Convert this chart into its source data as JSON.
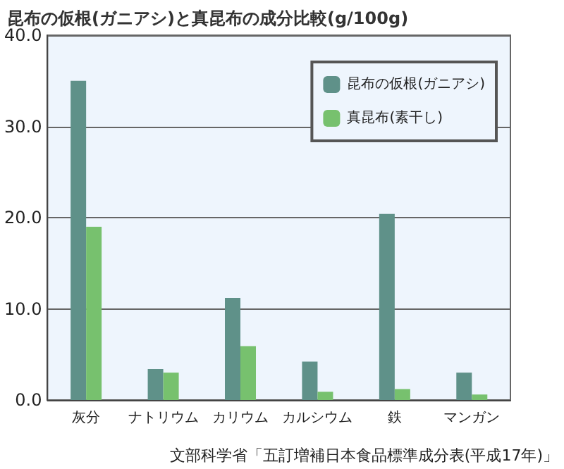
{
  "chart_data": {
    "type": "bar",
    "title": "昆布の仮根(ガニアシ)と真昆布の成分比較(g/100g)",
    "categories": [
      "灰分",
      "ナトリウム",
      "カリウム",
      "カルシウム",
      "鉄",
      "マンガン"
    ],
    "series": [
      {
        "name": "昆布の仮根(ガニアシ)",
        "color": "#5f9189",
        "values": [
          35.0,
          3.4,
          11.2,
          4.2,
          20.4,
          3.0
        ]
      },
      {
        "name": "真昆布(素干し)",
        "color": "#77c16e",
        "values": [
          19.0,
          3.0,
          5.9,
          0.9,
          1.2,
          0.6
        ]
      }
    ],
    "ylim": [
      0,
      40
    ],
    "yticks": [
      {
        "value": 0,
        "label": "0.0"
      },
      {
        "value": 10,
        "label": "10.0"
      },
      {
        "value": 20,
        "label": "20.0"
      },
      {
        "value": 30,
        "label": "30.0"
      },
      {
        "value": 40,
        "label": "40.0"
      }
    ],
    "grid": "y",
    "legend": "top right",
    "annotations": [
      "文部科学省「五訂増補日本食品標準成分表(平成17年)」"
    ]
  }
}
